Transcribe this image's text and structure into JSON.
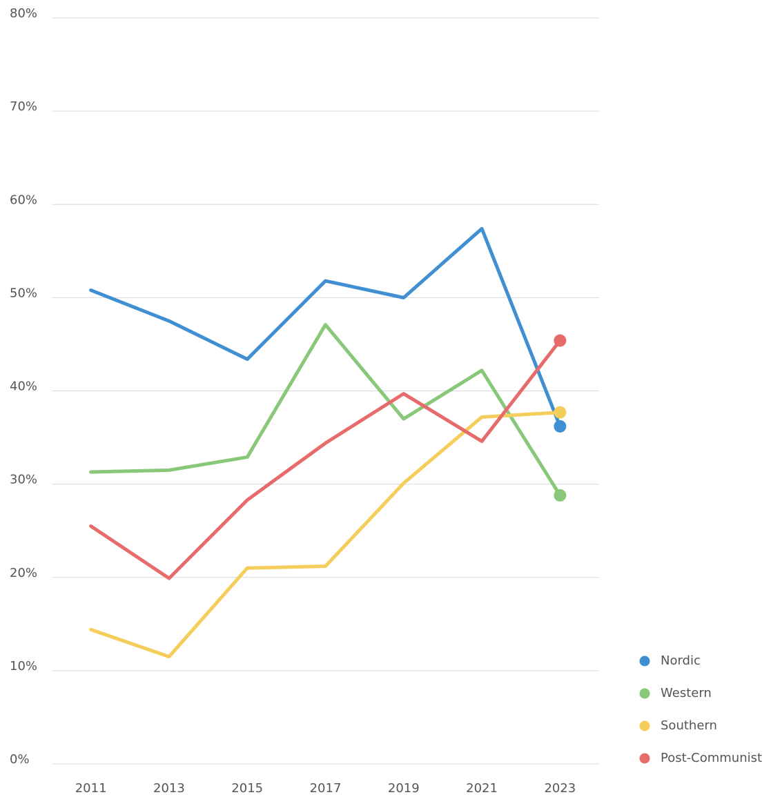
{
  "chart_data": {
    "type": "line",
    "categories": [
      "2011",
      "2013",
      "2015",
      "2017",
      "2019",
      "2021",
      "2023"
    ],
    "series": [
      {
        "name": "Nordic",
        "color": "#3f8fd2",
        "values": [
          50.8,
          47.5,
          43.4,
          51.8,
          50.0,
          57.4,
          36.2
        ]
      },
      {
        "name": "Western",
        "color": "#88c878",
        "values": [
          31.3,
          31.5,
          32.9,
          47.1,
          37.0,
          42.2,
          28.8
        ]
      },
      {
        "name": "Southern",
        "color": "#f5cd5a",
        "values": [
          14.4,
          11.5,
          21.0,
          21.2,
          30.1,
          37.2,
          37.7
        ]
      },
      {
        "name": "Post-Communist",
        "color": "#e86b6b",
        "values": [
          25.5,
          19.9,
          28.3,
          34.4,
          39.7,
          34.6,
          45.4
        ]
      }
    ],
    "ylim": [
      0,
      80
    ],
    "yticks": [
      {
        "value": 0,
        "label": "0%"
      },
      {
        "value": 10,
        "label": "10%"
      },
      {
        "value": 20,
        "label": "20%"
      },
      {
        "value": 30,
        "label": "30%"
      },
      {
        "value": 40,
        "label": "40%"
      },
      {
        "value": 50,
        "label": "50%"
      },
      {
        "value": 60,
        "label": "60%"
      },
      {
        "value": 70,
        "label": "70%"
      },
      {
        "value": 80,
        "label": "80%"
      }
    ],
    "grid": true,
    "legend": "bottom-right"
  }
}
